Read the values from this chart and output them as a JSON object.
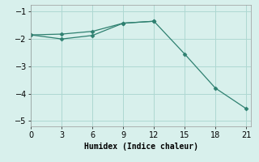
{
  "line1_x": [
    0,
    3,
    6,
    9,
    12
  ],
  "line1_y": [
    -1.85,
    -1.82,
    -1.72,
    -1.42,
    -1.35
  ],
  "line2_x": [
    0,
    3,
    6,
    9,
    12,
    15,
    18,
    21
  ],
  "line2_y": [
    -1.85,
    -2.0,
    -1.87,
    -1.42,
    -1.35,
    -2.55,
    -3.8,
    -4.55
  ],
  "line_color": "#2e8070",
  "marker": "D",
  "marker_size": 2.5,
  "bg_color": "#d8f0ec",
  "grid_color": "#aed8d2",
  "xlabel": "Humidex (Indice chaleur)",
  "xlim": [
    0,
    21.5
  ],
  "ylim": [
    -5.2,
    -0.75
  ],
  "xticks": [
    0,
    3,
    6,
    9,
    12,
    15,
    18,
    21
  ],
  "yticks": [
    -5,
    -4,
    -3,
    -2,
    -1
  ],
  "label_fontsize": 7,
  "tick_fontsize": 7,
  "line_width": 0.9
}
